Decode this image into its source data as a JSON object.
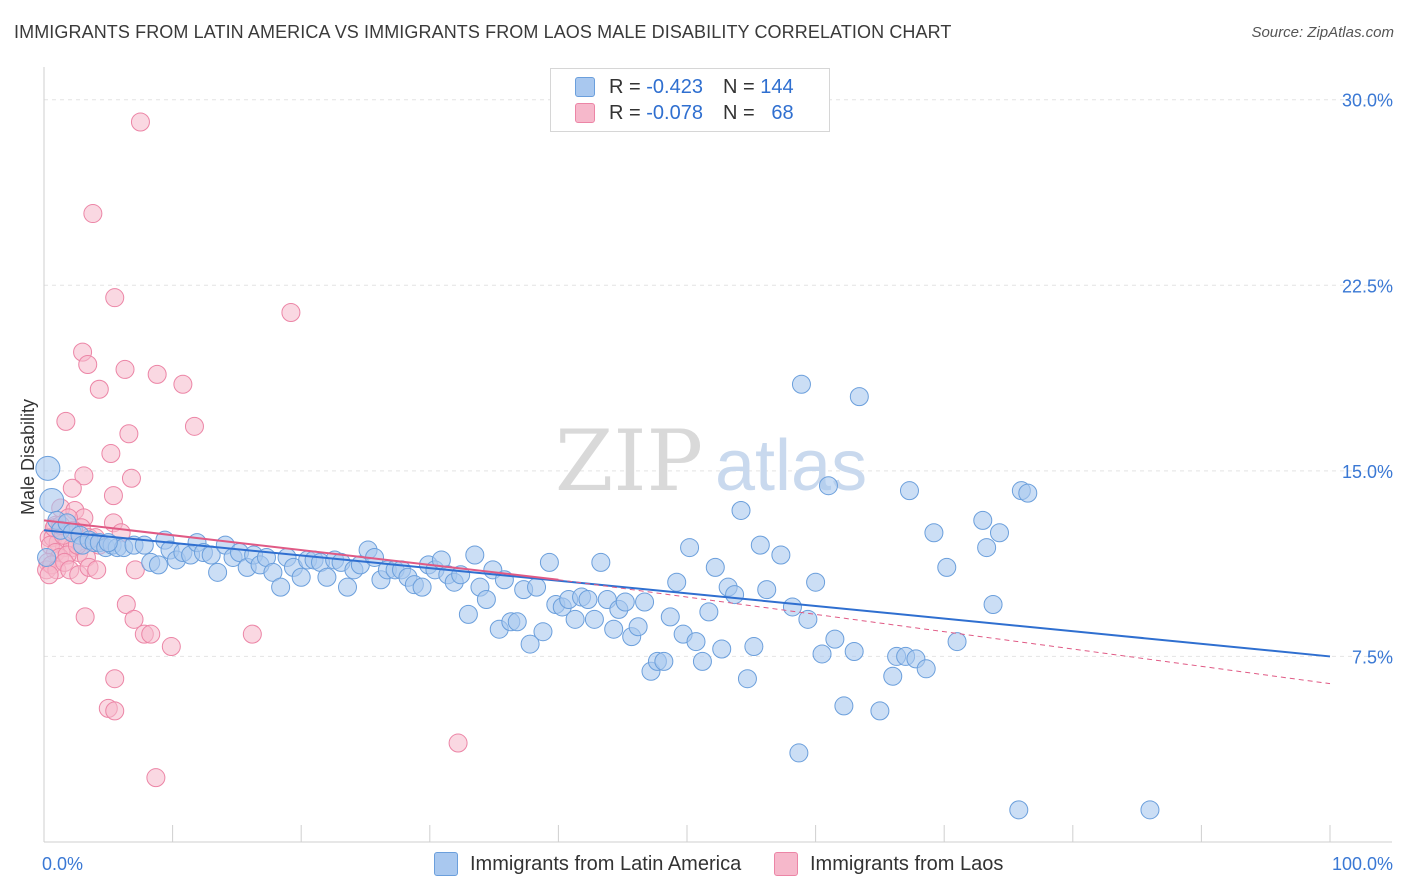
{
  "title": "IMMIGRANTS FROM LATIN AMERICA VS IMMIGRANTS FROM LAOS MALE DISABILITY CORRELATION CHART",
  "source": "Source: ZipAtlas.com",
  "watermark": {
    "bold": "ZIP",
    "light": "atlas"
  },
  "legend": {
    "rows": [
      {
        "r_label": "R =",
        "r_value": "-0.423",
        "n_label": "N =",
        "n_value": "144"
      },
      {
        "r_label": "R =",
        "r_value": "-0.078",
        "n_label": "N =",
        "n_value": "68"
      }
    ]
  },
  "bottom_legend": {
    "series1": "Immigrants from Latin America",
    "series2": "Immigrants from Laos"
  },
  "colors": {
    "blue_fill": "#a9c8ef",
    "blue_stroke": "#6b9fdc",
    "blue_line": "#2f6fd0",
    "pink_fill": "#f6b8cb",
    "pink_stroke": "#ec85a6",
    "pink_line": "#e05a85",
    "axis_text": "#3a78d4",
    "grid": "#e4e4e4"
  },
  "chart_data": {
    "type": "scatter",
    "title": "IMMIGRANTS FROM LATIN AMERICA VS IMMIGRANTS FROM LAOS MALE DISABILITY CORRELATION CHART",
    "xlabel": "",
    "ylabel": "Male Disability",
    "xlim": [
      0,
      100
    ],
    "ylim": [
      0,
      31
    ],
    "x_tick_labels": [
      "0.0%",
      "100.0%"
    ],
    "y_ticks": [
      7.5,
      15.0,
      22.5,
      30.0
    ],
    "y_tick_labels": [
      "7.5%",
      "15.0%",
      "22.5%",
      "30.0%"
    ],
    "grid": true,
    "series": [
      {
        "name": "Immigrants from Latin America",
        "R": -0.423,
        "N": 144,
        "trend": {
          "x0": 0,
          "y0": 12.6,
          "x1": 100,
          "y1": 7.5
        },
        "points": [
          [
            0.3,
            15.1
          ],
          [
            0.6,
            13.8
          ],
          [
            1.0,
            13.0
          ],
          [
            1.3,
            12.6
          ],
          [
            1.8,
            12.9
          ],
          [
            2.2,
            12.5
          ],
          [
            2.8,
            12.4
          ],
          [
            3.0,
            12.0
          ],
          [
            3.5,
            12.2
          ],
          [
            3.9,
            12.1
          ],
          [
            4.3,
            12.1
          ],
          [
            4.8,
            11.9
          ],
          [
            5.3,
            12.0
          ],
          [
            5.7,
            11.9
          ],
          [
            6.2,
            11.9
          ],
          [
            7.0,
            12.0
          ],
          [
            7.8,
            12.0
          ],
          [
            8.3,
            11.3
          ],
          [
            8.9,
            11.2
          ],
          [
            9.4,
            12.2
          ],
          [
            9.8,
            11.8
          ],
          [
            10.3,
            11.4
          ],
          [
            10.8,
            11.7
          ],
          [
            11.4,
            11.6
          ],
          [
            11.9,
            12.1
          ],
          [
            12.4,
            11.7
          ],
          [
            13.0,
            11.6
          ],
          [
            13.5,
            10.9
          ],
          [
            14.1,
            12.0
          ],
          [
            14.7,
            11.5
          ],
          [
            15.2,
            11.7
          ],
          [
            15.8,
            11.1
          ],
          [
            16.3,
            11.6
          ],
          [
            16.8,
            11.2
          ],
          [
            17.3,
            11.5
          ],
          [
            17.8,
            10.9
          ],
          [
            18.4,
            10.3
          ],
          [
            18.9,
            11.5
          ],
          [
            19.4,
            11.1
          ],
          [
            20.0,
            10.7
          ],
          [
            20.5,
            11.4
          ],
          [
            21.0,
            11.4
          ],
          [
            21.5,
            11.3
          ],
          [
            22.0,
            10.7
          ],
          [
            22.6,
            11.4
          ],
          [
            23.1,
            11.3
          ],
          [
            23.6,
            10.3
          ],
          [
            24.1,
            11.0
          ],
          [
            24.6,
            11.2
          ],
          [
            25.2,
            11.8
          ],
          [
            25.7,
            11.5
          ],
          [
            26.2,
            10.6
          ],
          [
            26.7,
            11.0
          ],
          [
            27.3,
            11.0
          ],
          [
            27.8,
            11.0
          ],
          [
            28.3,
            10.7
          ],
          [
            28.8,
            10.4
          ],
          [
            29.4,
            10.3
          ],
          [
            29.9,
            11.2
          ],
          [
            30.4,
            11.0
          ],
          [
            30.9,
            11.4
          ],
          [
            31.4,
            10.8
          ],
          [
            31.9,
            10.5
          ],
          [
            32.4,
            10.8
          ],
          [
            33.0,
            9.2
          ],
          [
            33.5,
            11.6
          ],
          [
            33.9,
            10.3
          ],
          [
            34.4,
            9.8
          ],
          [
            34.9,
            11.0
          ],
          [
            35.4,
            8.6
          ],
          [
            35.8,
            10.6
          ],
          [
            36.3,
            8.9
          ],
          [
            36.8,
            8.9
          ],
          [
            37.3,
            10.2
          ],
          [
            37.8,
            8.0
          ],
          [
            38.3,
            10.3
          ],
          [
            38.8,
            8.5
          ],
          [
            39.3,
            11.3
          ],
          [
            39.8,
            9.6
          ],
          [
            40.3,
            9.5
          ],
          [
            40.8,
            9.8
          ],
          [
            41.3,
            9.0
          ],
          [
            41.8,
            9.9
          ],
          [
            42.3,
            9.8
          ],
          [
            42.8,
            9.0
          ],
          [
            43.3,
            11.3
          ],
          [
            43.8,
            9.8
          ],
          [
            44.3,
            8.6
          ],
          [
            44.7,
            9.4
          ],
          [
            45.2,
            9.7
          ],
          [
            45.7,
            8.3
          ],
          [
            46.2,
            8.7
          ],
          [
            46.7,
            9.7
          ],
          [
            47.2,
            6.9
          ],
          [
            47.7,
            7.3
          ],
          [
            48.2,
            7.3
          ],
          [
            48.7,
            9.1
          ],
          [
            49.2,
            10.5
          ],
          [
            49.7,
            8.4
          ],
          [
            50.2,
            11.9
          ],
          [
            50.7,
            8.1
          ],
          [
            51.2,
            7.3
          ],
          [
            51.7,
            9.3
          ],
          [
            52.2,
            11.1
          ],
          [
            52.7,
            7.8
          ],
          [
            53.2,
            10.3
          ],
          [
            53.7,
            10.0
          ],
          [
            54.2,
            13.4
          ],
          [
            54.7,
            6.6
          ],
          [
            55.2,
            7.9
          ],
          [
            55.7,
            12.0
          ],
          [
            56.2,
            10.2
          ],
          [
            57.3,
            11.6
          ],
          [
            58.2,
            9.5
          ],
          [
            58.7,
            3.6
          ],
          [
            58.9,
            18.5
          ],
          [
            59.4,
            9.0
          ],
          [
            60.0,
            10.5
          ],
          [
            60.5,
            7.6
          ],
          [
            61.0,
            14.4
          ],
          [
            61.5,
            8.2
          ],
          [
            62.2,
            5.5
          ],
          [
            63.0,
            7.7
          ],
          [
            63.4,
            18.0
          ],
          [
            65.0,
            5.3
          ],
          [
            66.0,
            6.7
          ],
          [
            66.3,
            7.5
          ],
          [
            67.0,
            7.5
          ],
          [
            67.3,
            14.2
          ],
          [
            67.8,
            7.4
          ],
          [
            68.6,
            7.0
          ],
          [
            69.2,
            12.5
          ],
          [
            70.2,
            11.1
          ],
          [
            71.0,
            8.1
          ],
          [
            73.0,
            13.0
          ],
          [
            73.3,
            11.9
          ],
          [
            73.8,
            9.6
          ],
          [
            74.3,
            12.5
          ],
          [
            75.8,
            1.3
          ],
          [
            76.0,
            14.2
          ],
          [
            76.5,
            14.1
          ],
          [
            86.0,
            1.3
          ],
          [
            0.2,
            11.5
          ],
          [
            5.0,
            12.1
          ]
        ]
      },
      {
        "name": "Immigrants from Laos",
        "R": -0.078,
        "N": 68,
        "trend_solid": {
          "x0": 0,
          "y0": 13.0,
          "x1": 40,
          "y1": 10.6
        },
        "trend_dashed": {
          "x0": 40,
          "y0": 10.6,
          "x1": 100,
          "y1": 6.4
        },
        "points": [
          [
            7.5,
            29.1
          ],
          [
            3.8,
            25.4
          ],
          [
            5.5,
            22.0
          ],
          [
            19.2,
            21.4
          ],
          [
            3.0,
            19.8
          ],
          [
            3.4,
            19.3
          ],
          [
            6.3,
            19.1
          ],
          [
            8.8,
            18.9
          ],
          [
            10.8,
            18.5
          ],
          [
            4.3,
            18.3
          ],
          [
            1.7,
            17.0
          ],
          [
            11.7,
            16.8
          ],
          [
            6.6,
            16.5
          ],
          [
            5.2,
            15.7
          ],
          [
            3.1,
            14.8
          ],
          [
            6.8,
            14.7
          ],
          [
            2.2,
            14.3
          ],
          [
            5.4,
            14.0
          ],
          [
            1.3,
            13.5
          ],
          [
            2.4,
            13.4
          ],
          [
            3.1,
            13.1
          ],
          [
            0.9,
            12.8
          ],
          [
            1.9,
            13.1
          ],
          [
            2.9,
            12.7
          ],
          [
            3.5,
            12.3
          ],
          [
            0.4,
            12.3
          ],
          [
            0.7,
            12.3
          ],
          [
            1.1,
            12.1
          ],
          [
            1.6,
            11.9
          ],
          [
            2.2,
            11.9
          ],
          [
            2.7,
            11.7
          ],
          [
            3.3,
            11.5
          ],
          [
            0.5,
            12.0
          ],
          [
            0.9,
            11.7
          ],
          [
            1.2,
            11.5
          ],
          [
            1.8,
            11.6
          ],
          [
            2.6,
            12.0
          ],
          [
            0.3,
            11.3
          ],
          [
            0.2,
            11.0
          ],
          [
            0.6,
            11.2
          ],
          [
            1.0,
            11.0
          ],
          [
            1.6,
            11.3
          ],
          [
            2.0,
            11.0
          ],
          [
            2.7,
            10.8
          ],
          [
            3.5,
            11.1
          ],
          [
            4.1,
            11.0
          ],
          [
            4.3,
            12.0
          ],
          [
            5.4,
            12.9
          ],
          [
            6.0,
            12.5
          ],
          [
            7.1,
            11.0
          ],
          [
            3.2,
            9.1
          ],
          [
            6.4,
            9.6
          ],
          [
            7.0,
            9.0
          ],
          [
            7.8,
            8.4
          ],
          [
            8.3,
            8.4
          ],
          [
            9.9,
            7.9
          ],
          [
            16.2,
            8.4
          ],
          [
            5.5,
            6.6
          ],
          [
            5.0,
            5.4
          ],
          [
            5.5,
            5.3
          ],
          [
            8.7,
            2.6
          ],
          [
            32.2,
            4.0
          ],
          [
            0.8,
            12.7
          ],
          [
            1.5,
            12.4
          ],
          [
            2.3,
            12.6
          ],
          [
            4.0,
            12.3
          ],
          [
            0.4,
            10.8
          ],
          [
            1.3,
            12.8
          ]
        ]
      }
    ]
  }
}
